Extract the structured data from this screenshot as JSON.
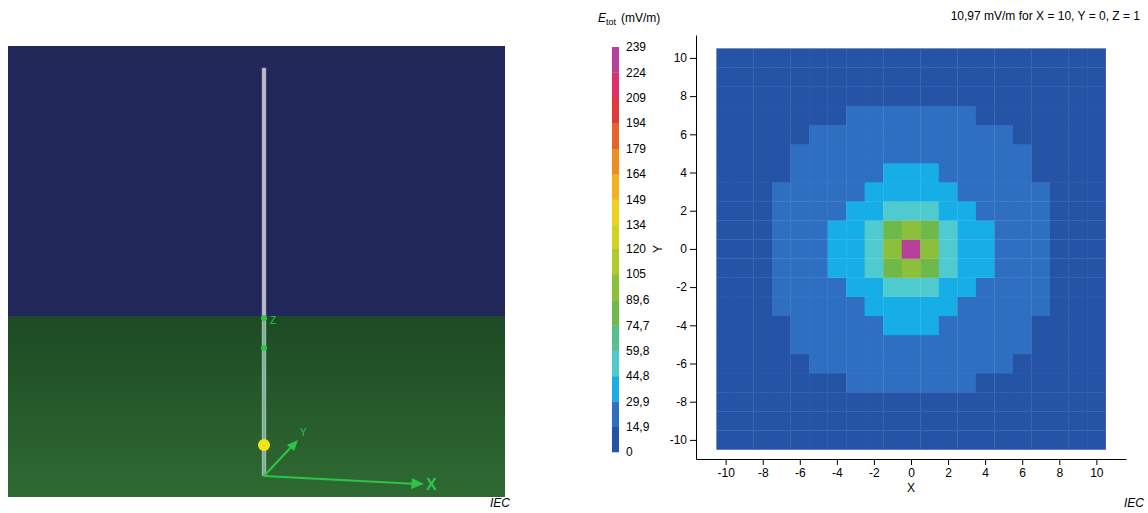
{
  "scene": {
    "axis_labels": {
      "x": "X",
      "y": "Y",
      "z": "Z"
    },
    "source": "IEC"
  },
  "chart_data": {
    "type": "heatmap",
    "title": "10,97 mV/m for X = 10, Y = 0, Z = 1",
    "x_label": "X",
    "y_label": "Y",
    "xlim": [
      -11.6,
      11.6
    ],
    "ylim": [
      -11,
      11.2
    ],
    "xticks": [
      -10,
      -8,
      -6,
      -4,
      -2,
      0,
      2,
      4,
      6,
      8,
      10
    ],
    "yticks": [
      -10,
      -8,
      -6,
      -4,
      -2,
      0,
      2,
      4,
      6,
      8,
      10
    ],
    "cells": {
      "x": [
        -10,
        -9,
        -8,
        -7,
        -6,
        -5,
        -4,
        -3,
        -2,
        -1,
        0,
        1,
        2,
        3,
        4,
        5,
        6,
        7,
        8,
        9,
        10
      ],
      "y": [
        -10,
        -9,
        -8,
        -7,
        -6,
        -5,
        -4,
        -3,
        -2,
        -1,
        0,
        1,
        2,
        3,
        4,
        5,
        6,
        7,
        8,
        9,
        10
      ],
      "values": [
        [
          7,
          8,
          8,
          9,
          9,
          10,
          10,
          10,
          11,
          11,
          10.97,
          11,
          11,
          10,
          10,
          10,
          9,
          9,
          8,
          8,
          7
        ],
        [
          8,
          8,
          9,
          9,
          10,
          11,
          11,
          12,
          12,
          12,
          12,
          12,
          12,
          12,
          11,
          11,
          10,
          9,
          9,
          8,
          8
        ],
        [
          8,
          9,
          10,
          10,
          11,
          12,
          12,
          13,
          14,
          14,
          14,
          14,
          14,
          13,
          12,
          12,
          11,
          10,
          10,
          9,
          8
        ],
        [
          9,
          9,
          10,
          11,
          12,
          13,
          14,
          15,
          16,
          16,
          16,
          16,
          16,
          15,
          14,
          13,
          12,
          11,
          10,
          9,
          9
        ],
        [
          9,
          10,
          11,
          12,
          13,
          15,
          16,
          17,
          18,
          19,
          20,
          19,
          18,
          17,
          16,
          15,
          13,
          12,
          11,
          10,
          9
        ],
        [
          10,
          11,
          12,
          13,
          15,
          16,
          18,
          20,
          22,
          24,
          24,
          24,
          22,
          20,
          18,
          16,
          15,
          13,
          12,
          11,
          10
        ],
        [
          10,
          11,
          12,
          14,
          16,
          18,
          21,
          24,
          27,
          30,
          31,
          30,
          27,
          24,
          21,
          18,
          16,
          14,
          12,
          11,
          10
        ],
        [
          10,
          12,
          13,
          15,
          17,
          20,
          24,
          29,
          34,
          38,
          40,
          38,
          34,
          29,
          24,
          20,
          17,
          15,
          13,
          12,
          10
        ],
        [
          11,
          12,
          14,
          16,
          18,
          22,
          27,
          34,
          42,
          51,
          56,
          51,
          42,
          34,
          27,
          22,
          18,
          16,
          14,
          12,
          11
        ],
        [
          11,
          12,
          14,
          16,
          19,
          24,
          30,
          38,
          51,
          78,
          100,
          78,
          51,
          38,
          30,
          24,
          19,
          16,
          14,
          12,
          11
        ],
        [
          10.97,
          12,
          14,
          16,
          20,
          24,
          31,
          40,
          56,
          100,
          239,
          100,
          56,
          40,
          31,
          24,
          20,
          16,
          14,
          12,
          10.97
        ],
        [
          11,
          12,
          14,
          16,
          19,
          24,
          30,
          38,
          51,
          78,
          100,
          78,
          51,
          38,
          30,
          24,
          19,
          16,
          14,
          12,
          11
        ],
        [
          11,
          12,
          14,
          16,
          18,
          22,
          27,
          34,
          42,
          51,
          56,
          51,
          42,
          34,
          27,
          22,
          18,
          16,
          14,
          12,
          11
        ],
        [
          10,
          12,
          13,
          15,
          17,
          20,
          24,
          29,
          34,
          38,
          40,
          38,
          34,
          29,
          24,
          20,
          17,
          15,
          13,
          12,
          10
        ],
        [
          10,
          11,
          12,
          14,
          16,
          18,
          21,
          24,
          27,
          30,
          31,
          30,
          27,
          24,
          21,
          18,
          16,
          14,
          12,
          11,
          10
        ],
        [
          10,
          11,
          12,
          13,
          15,
          16,
          18,
          20,
          22,
          24,
          24,
          24,
          22,
          20,
          18,
          16,
          15,
          13,
          12,
          11,
          10
        ],
        [
          9,
          10,
          11,
          12,
          13,
          15,
          16,
          17,
          18,
          19,
          20,
          19,
          18,
          17,
          16,
          15,
          13,
          12,
          11,
          10,
          9
        ],
        [
          9,
          9,
          10,
          11,
          12,
          13,
          14,
          15,
          16,
          16,
          16,
          16,
          16,
          15,
          14,
          13,
          12,
          11,
          10,
          9,
          9
        ],
        [
          8,
          9,
          10,
          10,
          11,
          12,
          12,
          13,
          14,
          14,
          14,
          14,
          14,
          13,
          12,
          12,
          11,
          10,
          10,
          9,
          8
        ],
        [
          8,
          8,
          9,
          9,
          10,
          11,
          11,
          12,
          12,
          12,
          12,
          12,
          12,
          12,
          11,
          11,
          10,
          9,
          9,
          8,
          8
        ],
        [
          7,
          8,
          8,
          9,
          9,
          10,
          10,
          10,
          11,
          11,
          10.97,
          11,
          11,
          10,
          10,
          10,
          9,
          9,
          8,
          8,
          7
        ]
      ]
    },
    "colorbar": {
      "title": {
        "symbol": "E",
        "subscript": "tot",
        "unit": "(mV/m)"
      },
      "range": [
        0,
        239
      ],
      "ticks": [
        0,
        {
          "value": 14.9,
          "label": "14,9"
        },
        {
          "value": 29.9,
          "label": "29,9"
        },
        {
          "value": 44.8,
          "label": "44,8"
        },
        {
          "value": 59.8,
          "label": "59,8"
        },
        {
          "value": 74.7,
          "label": "74,7"
        },
        {
          "value": 89.6,
          "label": "89,6"
        },
        105,
        120,
        134,
        149,
        164,
        179,
        194,
        209,
        224,
        239
      ],
      "colors": [
        "#2553a6",
        "#2f6fc2",
        "#17aee8",
        "#4fcbd0",
        "#58c08e",
        "#6fb84a",
        "#8cc03a",
        "#b2c92c",
        "#d2d322",
        "#f0d21e",
        "#f5b21c",
        "#f08c22",
        "#e8622a",
        "#e03a3a",
        "#e0306a",
        "#b8409c"
      ]
    },
    "source": "IEC"
  }
}
